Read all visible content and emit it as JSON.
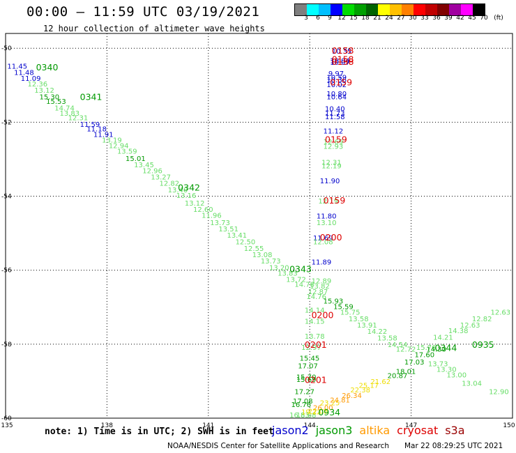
{
  "header": {
    "title": "00:00 — 11:59 UTC 03/19/2021",
    "subtitle": "12 hour collection of altimeter wave heights"
  },
  "legend": {
    "colors": [
      "#7f7f7f",
      "#00ffff",
      "#00bfff",
      "#0000ff",
      "#00dd00",
      "#00a000",
      "#006400",
      "#ffff00",
      "#ffc000",
      "#ff8000",
      "#ff0000",
      "#c00000",
      "#800000",
      "#a000a0",
      "#ff00ff",
      "#000000"
    ],
    "labels": [
      "3",
      "6",
      "9",
      "12",
      "15",
      "18",
      "21",
      "24",
      "27",
      "30",
      "33",
      "36",
      "39",
      "42",
      "45",
      "70",
      "(ft)"
    ]
  },
  "axes": {
    "x_ticks": [
      "135",
      "138",
      "141",
      "144",
      "147",
      "150"
    ],
    "y_ticks": [
      "-50",
      "-52",
      "-54",
      "-56",
      "-58",
      "-60"
    ],
    "x_range": [
      135,
      150
    ],
    "y_range": [
      -60,
      -49.6
    ]
  },
  "colors": {
    "jason2": "#0000cc",
    "jason3": "#009900",
    "jason3_light": "#66dd66",
    "altika": "#ff9900",
    "altika_light": "#eedd00",
    "cryosat": "#dd0000",
    "s3a": "#990000"
  },
  "tracks": {
    "pass_labels": [
      {
        "text": "0158",
        "lon": 144.65,
        "lat": -50.15,
        "sat": "cryosat"
      },
      {
        "text": "0158",
        "lon": 144.65,
        "lat": -50.38,
        "sat": "cryosat"
      },
      {
        "text": "0158",
        "lon": 144.65,
        "lat": -50.45,
        "sat": "cryosat"
      },
      {
        "text": "0159",
        "lon": 144.6,
        "lat": -51.0,
        "sat": "cryosat"
      },
      {
        "text": "0159",
        "lon": 144.45,
        "lat": -52.55,
        "sat": "cryosat"
      },
      {
        "text": "0159",
        "lon": 144.4,
        "lat": -54.2,
        "sat": "cryosat"
      },
      {
        "text": "0200",
        "lon": 144.3,
        "lat": -55.2,
        "sat": "cryosat"
      },
      {
        "text": "0200",
        "lon": 144.05,
        "lat": -57.3,
        "sat": "cryosat"
      },
      {
        "text": "0201",
        "lon": 143.85,
        "lat": -58.1,
        "sat": "cryosat"
      },
      {
        "text": "0201",
        "lon": 143.85,
        "lat": -59.05,
        "sat": "cryosat"
      },
      {
        "text": "0340",
        "lon": 135.9,
        "lat": -50.6,
        "sat": "jason3"
      },
      {
        "text": "0341",
        "lon": 137.2,
        "lat": -51.4,
        "sat": "jason3"
      },
      {
        "text": "0342",
        "lon": 140.1,
        "lat": -53.85,
        "sat": "jason3"
      },
      {
        "text": "0343",
        "lon": 143.4,
        "lat": -56.05,
        "sat": "jason3"
      },
      {
        "text": "0344",
        "lon": 147.7,
        "lat": -58.18,
        "sat": "jason3"
      },
      {
        "text": "0935",
        "lon": 148.8,
        "lat": -58.1,
        "sat": "jason3"
      },
      {
        "text": "0934",
        "lon": 144.25,
        "lat": -59.92,
        "sat": "jason3"
      }
    ],
    "values": [
      {
        "t": "10.35",
        "lon": 144.65,
        "lat": -50.15,
        "sat": "jason2"
      },
      {
        "t": "10.07",
        "lon": 144.6,
        "lat": -50.45,
        "sat": "jason2"
      },
      {
        "t": "10.04",
        "lon": 144.6,
        "lat": -50.4,
        "sat": "jason2"
      },
      {
        "t": "9.97",
        "lon": 144.55,
        "lat": -50.75,
        "sat": "jason2"
      },
      {
        "t": "10.59",
        "lon": 144.5,
        "lat": -50.85,
        "sat": "jason2"
      },
      {
        "t": "10.36",
        "lon": 144.5,
        "lat": -50.92,
        "sat": "jason2"
      },
      {
        "t": "10.02",
        "lon": 144.5,
        "lat": -51.05,
        "sat": "jason2"
      },
      {
        "t": "10.80",
        "lon": 144.5,
        "lat": -51.3,
        "sat": "jason2"
      },
      {
        "t": "10.64",
        "lon": 144.5,
        "lat": -51.38,
        "sat": "jason2"
      },
      {
        "t": "10.40",
        "lon": 144.45,
        "lat": -51.7,
        "sat": "jason2"
      },
      {
        "t": "11.73",
        "lon": 144.45,
        "lat": -51.82,
        "sat": "jason2"
      },
      {
        "t": "11.58",
        "lon": 144.45,
        "lat": -51.92,
        "sat": "jason2"
      },
      {
        "t": "11.12",
        "lon": 144.4,
        "lat": -52.3,
        "sat": "jason2"
      },
      {
        "t": "12.69",
        "lon": 144.4,
        "lat": -52.6,
        "sat": "jason3_light"
      },
      {
        "t": "12.93",
        "lon": 144.4,
        "lat": -52.72,
        "sat": "jason3_light"
      },
      {
        "t": "12.31",
        "lon": 144.35,
        "lat": -53.15,
        "sat": "jason3_light"
      },
      {
        "t": "12.19",
        "lon": 144.35,
        "lat": -53.25,
        "sat": "jason3_light"
      },
      {
        "t": "11.90",
        "lon": 144.3,
        "lat": -53.65,
        "sat": "jason2"
      },
      {
        "t": "12.19",
        "lon": 144.25,
        "lat": -54.2,
        "sat": "jason3_light"
      },
      {
        "t": "11.80",
        "lon": 144.2,
        "lat": -54.6,
        "sat": "jason2"
      },
      {
        "t": "13.10",
        "lon": 144.2,
        "lat": -54.78,
        "sat": "jason3_light"
      },
      {
        "t": "11.69",
        "lon": 144.1,
        "lat": -55.2,
        "sat": "jason2"
      },
      {
        "t": "12.08",
        "lon": 144.1,
        "lat": -55.3,
        "sat": "jason3_light"
      },
      {
        "t": "11.89",
        "lon": 144.05,
        "lat": -55.85,
        "sat": "jason2"
      },
      {
        "t": "11.45",
        "lon": 135.05,
        "lat": -50.55,
        "sat": "jason2"
      },
      {
        "t": "11.48",
        "lon": 135.25,
        "lat": -50.72,
        "sat": "jason2"
      },
      {
        "t": "11.09",
        "lon": 135.45,
        "lat": -50.88,
        "sat": "jason2"
      },
      {
        "t": "12.36",
        "lon": 135.65,
        "lat": -51.03,
        "sat": "jason3_light"
      },
      {
        "t": "13.12",
        "lon": 135.85,
        "lat": -51.2,
        "sat": "jason3_light"
      },
      {
        "t": "15.30",
        "lon": 136.0,
        "lat": -51.38,
        "sat": "jason3"
      },
      {
        "t": "15.53",
        "lon": 136.2,
        "lat": -51.5,
        "sat": "jason3"
      },
      {
        "t": "14.74",
        "lon": 136.45,
        "lat": -51.68,
        "sat": "jason3_light"
      },
      {
        "t": "13.83",
        "lon": 136.6,
        "lat": -51.82,
        "sat": "jason3_light"
      },
      {
        "t": "12.31",
        "lon": 136.85,
        "lat": -51.95,
        "sat": "jason3_light"
      },
      {
        "t": "11.59",
        "lon": 137.2,
        "lat": -52.12,
        "sat": "jason2"
      },
      {
        "t": "11.18",
        "lon": 137.4,
        "lat": -52.25,
        "sat": "jason2"
      },
      {
        "t": "11.91",
        "lon": 137.6,
        "lat": -52.4,
        "sat": "jason2"
      },
      {
        "t": "13.19",
        "lon": 137.85,
        "lat": -52.55,
        "sat": "jason3_light"
      },
      {
        "t": "12.94",
        "lon": 138.05,
        "lat": -52.7,
        "sat": "jason3_light"
      },
      {
        "t": "13.59",
        "lon": 138.3,
        "lat": -52.85,
        "sat": "jason3_light"
      },
      {
        "t": "15.01",
        "lon": 138.55,
        "lat": -53.05,
        "sat": "jason3"
      },
      {
        "t": "13.45",
        "lon": 138.8,
        "lat": -53.22,
        "sat": "jason3_light"
      },
      {
        "t": "12.96",
        "lon": 139.05,
        "lat": -53.38,
        "sat": "jason3_light"
      },
      {
        "t": "13.27",
        "lon": 139.3,
        "lat": -53.55,
        "sat": "jason3_light"
      },
      {
        "t": "12.82",
        "lon": 139.55,
        "lat": -53.72,
        "sat": "jason3_light"
      },
      {
        "t": "13.40",
        "lon": 139.8,
        "lat": -53.9,
        "sat": "jason3_light"
      },
      {
        "t": "13.16",
        "lon": 140.05,
        "lat": -54.05,
        "sat": "jason3_light"
      },
      {
        "t": "13.12",
        "lon": 140.3,
        "lat": -54.25,
        "sat": "jason3_light"
      },
      {
        "t": "12.60",
        "lon": 140.55,
        "lat": -54.42,
        "sat": "jason3_light"
      },
      {
        "t": "11.96",
        "lon": 140.8,
        "lat": -54.58,
        "sat": "jason3_light"
      },
      {
        "t": "13.73",
        "lon": 141.05,
        "lat": -54.78,
        "sat": "jason3_light"
      },
      {
        "t": "13.51",
        "lon": 141.3,
        "lat": -54.95,
        "sat": "jason3_light"
      },
      {
        "t": "13.41",
        "lon": 141.55,
        "lat": -55.12,
        "sat": "jason3_light"
      },
      {
        "t": "12.50",
        "lon": 141.8,
        "lat": -55.3,
        "sat": "jason3_light"
      },
      {
        "t": "12.55",
        "lon": 142.05,
        "lat": -55.48,
        "sat": "jason3_light"
      },
      {
        "t": "13.08",
        "lon": 142.3,
        "lat": -55.65,
        "sat": "jason3_light"
      },
      {
        "t": "13.73",
        "lon": 142.55,
        "lat": -55.82,
        "sat": "jason3_light"
      },
      {
        "t": "13.20",
        "lon": 142.8,
        "lat": -56.0,
        "sat": "jason3_light"
      },
      {
        "t": "13.83",
        "lon": 143.05,
        "lat": -56.15,
        "sat": "jason3_light"
      },
      {
        "t": "13.72",
        "lon": 143.3,
        "lat": -56.32,
        "sat": "jason3_light"
      },
      {
        "t": "14.78",
        "lon": 143.55,
        "lat": -56.45,
        "sat": "jason3_light"
      },
      {
        "t": "12.89",
        "lon": 144.05,
        "lat": -56.35,
        "sat": "jason3_light"
      },
      {
        "t": "13.82",
        "lon": 144.0,
        "lat": -56.5,
        "sat": "jason3_light"
      },
      {
        "t": "12.87",
        "lon": 143.95,
        "lat": -56.65,
        "sat": "jason3_light"
      },
      {
        "t": "14.76",
        "lon": 143.9,
        "lat": -56.78,
        "sat": "jason3_light"
      },
      {
        "t": "15.93",
        "lon": 144.4,
        "lat": -56.9,
        "sat": "jason3"
      },
      {
        "t": "15.59",
        "lon": 144.7,
        "lat": -57.05,
        "sat": "jason3"
      },
      {
        "t": "14.14",
        "lon": 143.85,
        "lat": -57.15,
        "sat": "jason3_light"
      },
      {
        "t": "15.75",
        "lon": 144.9,
        "lat": -57.2,
        "sat": "jason3_light"
      },
      {
        "t": "13.58",
        "lon": 145.15,
        "lat": -57.38,
        "sat": "jason3_light"
      },
      {
        "t": "14.15",
        "lon": 143.85,
        "lat": -57.45,
        "sat": "jason3_light"
      },
      {
        "t": "13.91",
        "lon": 145.4,
        "lat": -57.55,
        "sat": "jason3_light"
      },
      {
        "t": "14.22",
        "lon": 145.7,
        "lat": -57.72,
        "sat": "jason3_light"
      },
      {
        "t": "13.78",
        "lon": 143.85,
        "lat": -57.85,
        "sat": "jason3_light"
      },
      {
        "t": "13.58",
        "lon": 146.0,
        "lat": -57.9,
        "sat": "jason3_light"
      },
      {
        "t": "14.54",
        "lon": 146.3,
        "lat": -58.08,
        "sat": "jason3_light"
      },
      {
        "t": "12.72",
        "lon": 146.55,
        "lat": -58.2,
        "sat": "jason3_light"
      },
      {
        "t": "12.97",
        "lon": 143.75,
        "lat": -58.15,
        "sat": "jason3_light"
      },
      {
        "t": "15.45",
        "lon": 143.7,
        "lat": -58.45,
        "sat": "jason3"
      },
      {
        "t": "17.07",
        "lon": 143.65,
        "lat": -58.65,
        "sat": "jason3"
      },
      {
        "t": "15.70",
        "lon": 143.6,
        "lat": -58.95,
        "sat": "jason3"
      },
      {
        "t": "15.69",
        "lon": 143.6,
        "lat": -59.02,
        "sat": "jason3"
      },
      {
        "t": "17.27",
        "lon": 143.55,
        "lat": -59.35,
        "sat": "jason3"
      },
      {
        "t": "17.08",
        "lon": 143.5,
        "lat": -59.6,
        "sat": "jason3"
      },
      {
        "t": "16.76",
        "lon": 143.45,
        "lat": -59.7,
        "sat": "jason3"
      },
      {
        "t": "16.83",
        "lon": 143.4,
        "lat": -59.98,
        "sat": "jason3_light"
      },
      {
        "t": "18.68",
        "lon": 143.6,
        "lat": -59.98,
        "sat": "jason3_light"
      },
      {
        "t": "19.22",
        "lon": 143.75,
        "lat": -59.9,
        "sat": "altika_light"
      },
      {
        "t": "26.00",
        "lon": 144.1,
        "lat": -59.78,
        "sat": "altika"
      },
      {
        "t": "22.08",
        "lon": 143.95,
        "lat": -59.88,
        "sat": "altika_light"
      },
      {
        "t": "23.25",
        "lon": 144.3,
        "lat": -59.65,
        "sat": "altika_light"
      },
      {
        "t": "24.81",
        "lon": 144.6,
        "lat": -59.58,
        "sat": "altika"
      },
      {
        "t": "26.34",
        "lon": 144.95,
        "lat": -59.45,
        "sat": "altika"
      },
      {
        "t": "22.38",
        "lon": 145.2,
        "lat": -59.3,
        "sat": "altika_light"
      },
      {
        "t": "25.17",
        "lon": 145.45,
        "lat": -59.18,
        "sat": "altika_light"
      },
      {
        "t": "21.62",
        "lon": 145.8,
        "lat": -59.08,
        "sat": "altika_light"
      },
      {
        "t": "20.87",
        "lon": 146.3,
        "lat": -58.92,
        "sat": "jason3"
      },
      {
        "t": "18.01",
        "lon": 146.55,
        "lat": -58.8,
        "sat": "jason3"
      },
      {
        "t": "17.03",
        "lon": 146.8,
        "lat": -58.55,
        "sat": "jason3"
      },
      {
        "t": "17.60",
        "lon": 147.1,
        "lat": -58.35,
        "sat": "jason3"
      },
      {
        "t": "15.76",
        "lon": 147.15,
        "lat": -58.15,
        "sat": "jason3_light"
      },
      {
        "t": "14.30",
        "lon": 147.45,
        "lat": -58.2,
        "sat": "jason3"
      },
      {
        "t": "14.21",
        "lon": 147.65,
        "lat": -57.88,
        "sat": "jason3_light"
      },
      {
        "t": "14.38",
        "lon": 148.1,
        "lat": -57.7,
        "sat": "jason3_light"
      },
      {
        "t": "12.63",
        "lon": 148.45,
        "lat": -57.55,
        "sat": "jason3_light"
      },
      {
        "t": "12.82",
        "lon": 148.8,
        "lat": -57.38,
        "sat": "jason3_light"
      },
      {
        "t": "12.63",
        "lon": 149.35,
        "lat": -57.2,
        "sat": "jason3_light"
      },
      {
        "t": "13.73",
        "lon": 147.5,
        "lat": -58.6,
        "sat": "jason3_light"
      },
      {
        "t": "13.30",
        "lon": 147.75,
        "lat": -58.75,
        "sat": "jason3_light"
      },
      {
        "t": "13.00",
        "lon": 148.05,
        "lat": -58.9,
        "sat": "jason3_light"
      },
      {
        "t": "13.04",
        "lon": 148.5,
        "lat": -59.12,
        "sat": "jason3_light"
      },
      {
        "t": "12.90",
        "lon": 149.3,
        "lat": -59.35,
        "sat": "jason3_light"
      }
    ]
  },
  "footer": {
    "note": "note: 1) Time is in UTC; 2) SWH is in feet",
    "sat_names": [
      {
        "label": "jason2",
        "color": "#0000cc"
      },
      {
        "label": "jason3",
        "color": "#009900"
      },
      {
        "label": "altika",
        "color": "#ff9900"
      },
      {
        "label": "cryosat",
        "color": "#dd0000"
      },
      {
        "label": "s3a",
        "color": "#990000"
      }
    ],
    "credit": "NOAA/NESDIS Center for Satellite Applications and Research",
    "timestamp": "Mar 22 08:29:25 UTC 2021"
  }
}
